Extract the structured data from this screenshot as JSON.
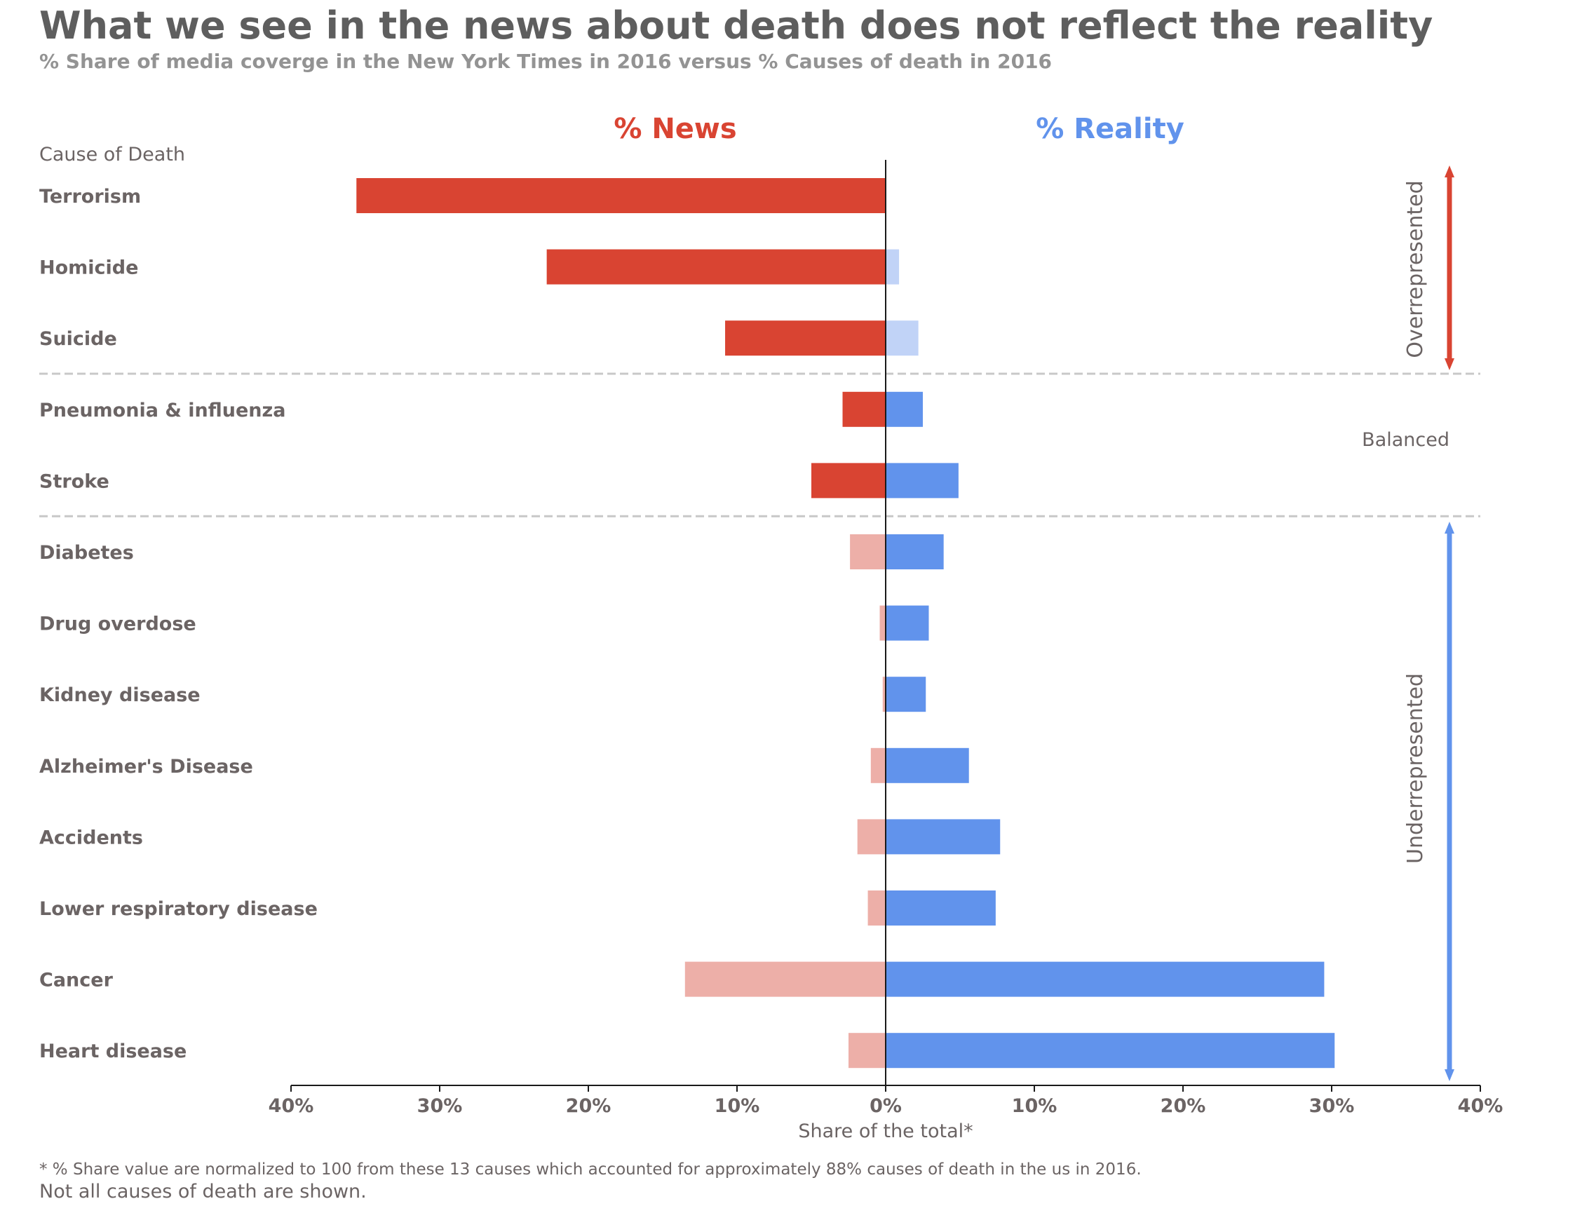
{
  "chart_data": {
    "type": "bar",
    "title": "What we see in the news about death does not reflect the reality",
    "subtitle": "% Share of media coverge in the New York Times in 2016  versus  % Causes of death in 2016",
    "category_header": "Cause of Death",
    "xlabel": "Share of the total*",
    "xlim": [
      -40,
      40
    ],
    "x_ticks": [
      -40,
      -30,
      -20,
      -10,
      0,
      10,
      20,
      30,
      40
    ],
    "x_tick_labels": [
      "40%",
      "30%",
      "20%",
      "10%",
      "0%",
      "10%",
      "20%",
      "30%",
      "40%"
    ],
    "categories": [
      "Terrorism",
      "Homicide",
      "Suicide",
      "Pneumonia & influenza",
      "Stroke",
      "Diabetes",
      "Drug overdose",
      "Kidney disease",
      "Alzheimer's Disease",
      "Accidents",
      "Lower respiratory disease",
      "Cancer",
      "Heart disease"
    ],
    "series": [
      {
        "name": "% News",
        "values": [
          35.6,
          22.8,
          10.8,
          2.9,
          5.0,
          2.4,
          0.4,
          0.2,
          1.0,
          1.9,
          1.2,
          13.5,
          2.5
        ]
      },
      {
        "name": "% Reality",
        "values": [
          0.0,
          0.9,
          2.2,
          2.5,
          4.9,
          3.9,
          2.9,
          2.7,
          5.6,
          7.7,
          7.4,
          29.5,
          30.2
        ]
      }
    ],
    "colors": {
      "news_strong": "#d94432",
      "news_light": "#edafa8",
      "reality_strong": "#6193ec",
      "reality_light": "#c1d3f7",
      "title": "#5e5e5e",
      "subtitle": "#939393",
      "label": "#6b6464",
      "divider": "#c8c8c8"
    },
    "groups": [
      {
        "label": "Overrepresented",
        "categories": [
          "Terrorism",
          "Homicide",
          "Suicide"
        ]
      },
      {
        "label": "Balanced",
        "categories": [
          "Pneumonia & influenza",
          "Stroke"
        ]
      },
      {
        "label": "Underrepresented",
        "categories": [
          "Diabetes",
          "Drug overdose",
          "Kidney disease",
          "Alzheimer's Disease",
          "Accidents",
          "Lower respiratory disease",
          "Cancer",
          "Heart disease"
        ]
      }
    ],
    "footnote": "* % Share value are normalized to 100 from these 13 causes which accounted for approximately 88% causes of death in the us in 2016.",
    "footnote2": "Not all causes of death are shown."
  }
}
